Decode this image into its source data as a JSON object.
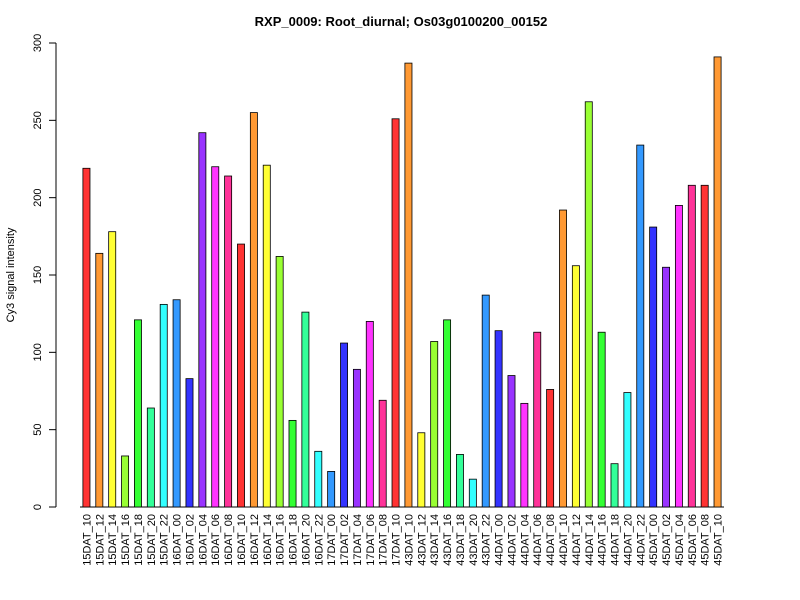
{
  "chart_data": {
    "type": "bar",
    "title": "RXP_0009: Root_diurnal; Os03g0100200_00152",
    "ylabel": "Cy3 signal intensity",
    "xlabel": "",
    "ylim": [
      0,
      300
    ],
    "yticks": [
      0,
      50,
      100,
      150,
      200,
      250,
      300
    ],
    "grid": false,
    "categories": [
      "15DAT_10",
      "15DAT_12",
      "15DAT_14",
      "15DAT_16",
      "15DAT_18",
      "15DAT_20",
      "15DAT_22",
      "16DAT_00",
      "16DAT_02",
      "16DAT_04",
      "16DAT_06",
      "16DAT_08",
      "16DAT_10",
      "16DAT_12",
      "16DAT_14",
      "16DAT_16",
      "16DAT_18",
      "16DAT_20",
      "16DAT_22",
      "17DAT_00",
      "17DAT_02",
      "17DAT_04",
      "17DAT_06",
      "17DAT_08",
      "17DAT_10",
      "43DAT_10",
      "43DAT_12",
      "43DAT_14",
      "43DAT_16",
      "43DAT_18",
      "43DAT_20",
      "43DAT_22",
      "44DAT_00",
      "44DAT_02",
      "44DAT_04",
      "44DAT_06",
      "44DAT_08",
      "44DAT_10",
      "44DAT_12",
      "44DAT_14",
      "44DAT_16",
      "44DAT_18",
      "44DAT_20",
      "44DAT_22",
      "45DAT_00",
      "45DAT_02",
      "45DAT_04",
      "45DAT_06",
      "45DAT_08",
      "45DAT_10"
    ],
    "values": [
      219,
      164,
      178,
      33,
      121,
      64,
      131,
      134,
      83,
      242,
      220,
      214,
      170,
      255,
      221,
      162,
      56,
      126,
      36,
      23,
      106,
      89,
      120,
      69,
      251,
      287,
      48,
      107,
      121,
      34,
      18,
      137,
      114,
      85,
      67,
      113,
      76,
      192,
      156,
      262,
      113,
      28,
      74,
      234,
      181,
      155,
      195,
      208,
      208,
      291
    ],
    "colors": [
      "#ff3333",
      "#ff9933",
      "#ffff33",
      "#99ff33",
      "#33ff33",
      "#33ff99",
      "#33ffff",
      "#3399ff",
      "#3333ff",
      "#9933ff",
      "#ff33ff",
      "#ff3399"
    ]
  }
}
